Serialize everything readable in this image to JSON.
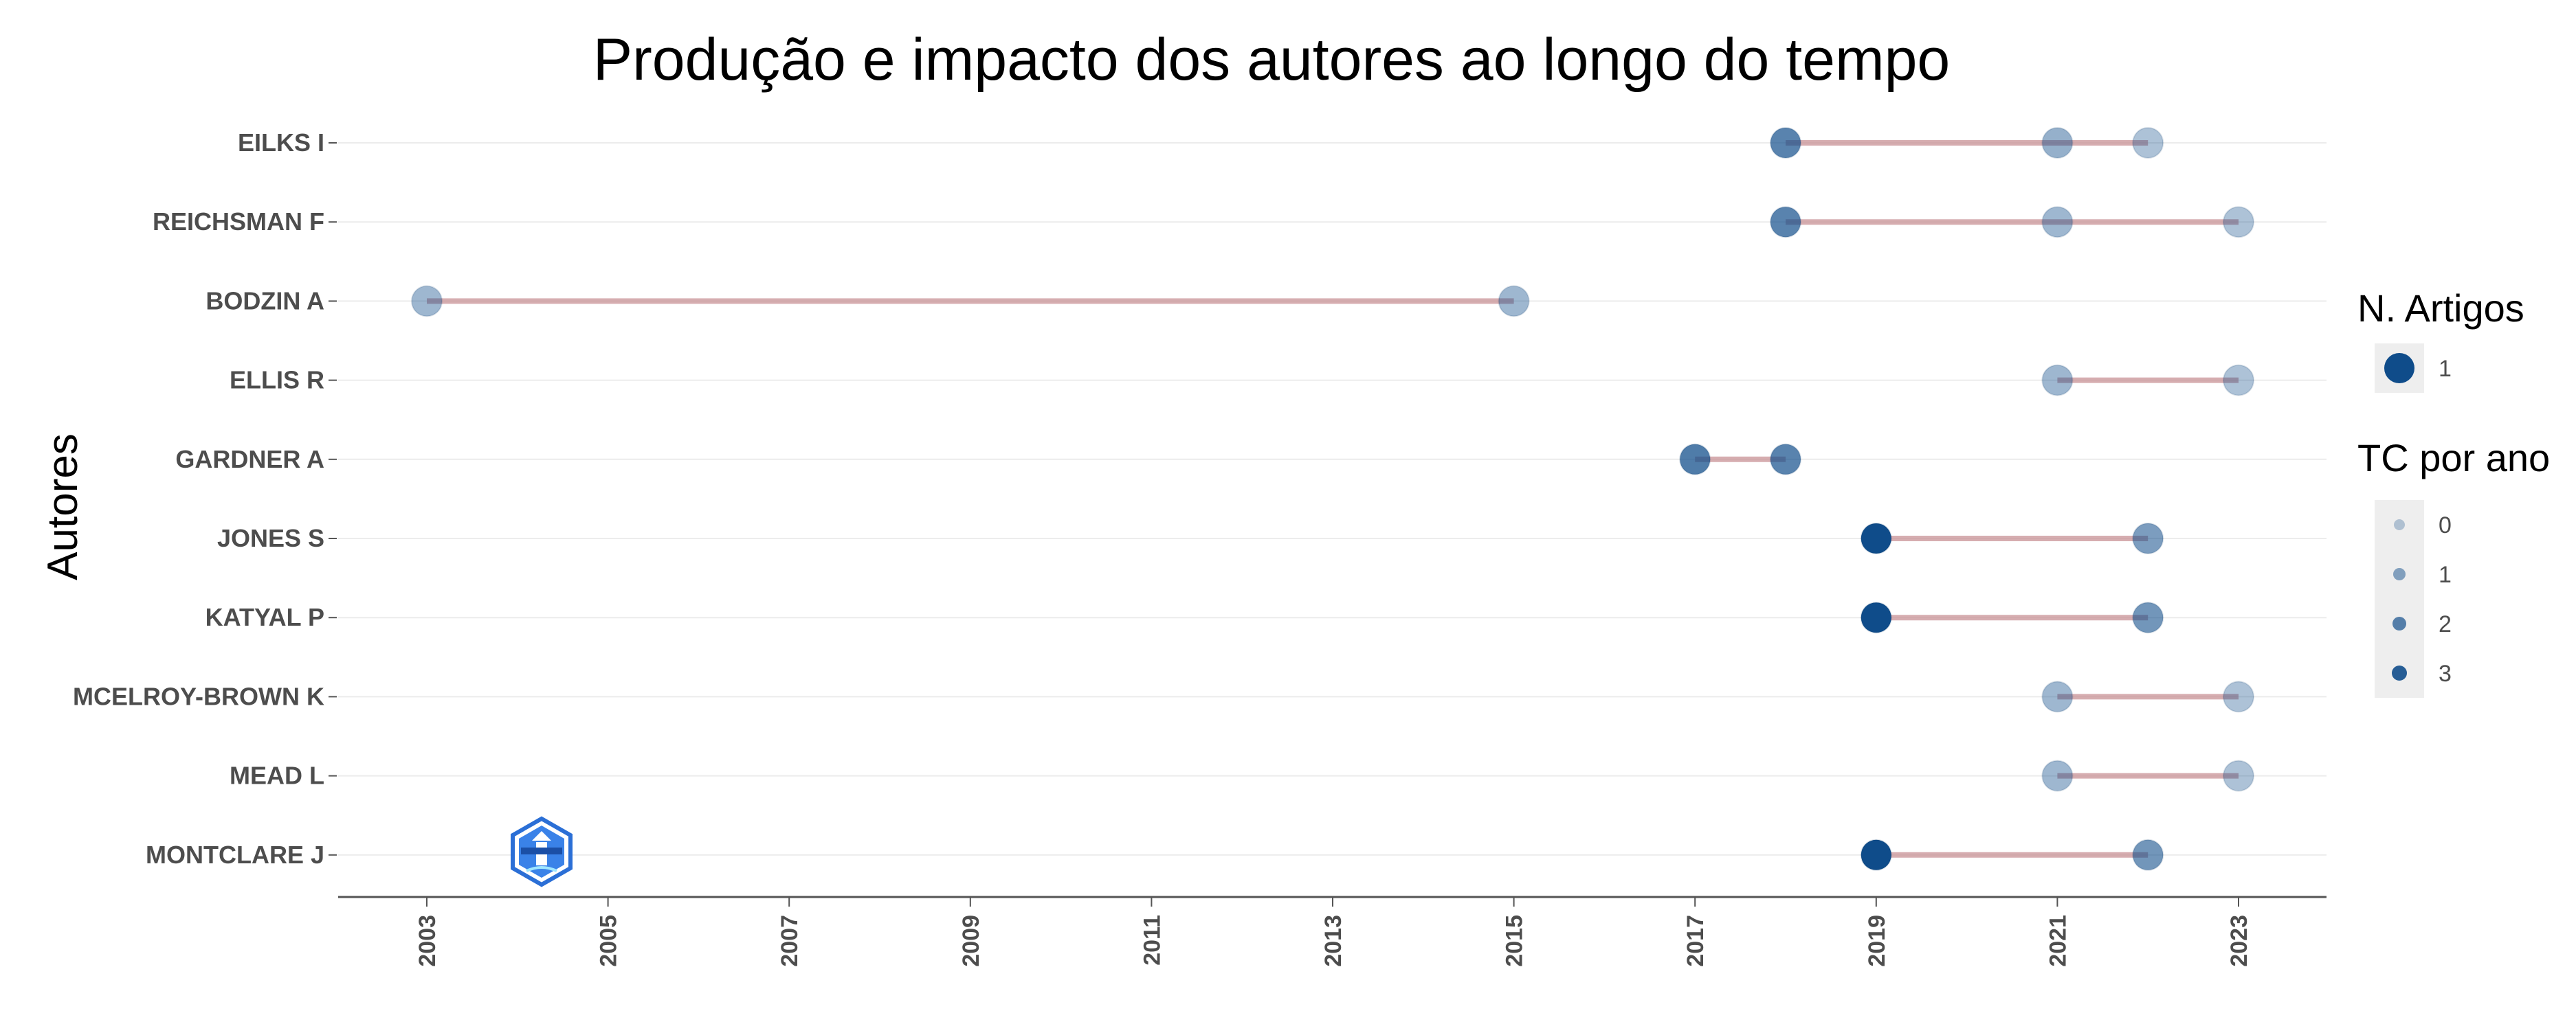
{
  "chart_data": {
    "type": "scatter",
    "title": "Produção e impacto dos autores ao longo do tempo",
    "ylabel": "Autores",
    "xlabel": "",
    "xlim": [
      2002,
      2024
    ],
    "x_ticks": [
      2003,
      2005,
      2007,
      2009,
      2011,
      2013,
      2015,
      2017,
      2019,
      2021,
      2023
    ],
    "x_tick_labels": [
      "2003",
      "2005",
      "2007",
      "2009",
      "2011",
      "2013",
      "2015",
      "2017",
      "2019",
      "2021",
      "2023"
    ],
    "categories": [
      "EILKS I",
      "REICHSMAN F",
      "BODZIN A",
      "ELLIS R",
      "GARDNER A",
      "JONES S",
      "KATYAL P",
      "MCELROY-BROWN K",
      "MEAD L",
      "MONTCLARE J"
    ],
    "segments": [
      {
        "author": "EILKS I",
        "from": 2018,
        "to": 2022
      },
      {
        "author": "REICHSMAN F",
        "from": 2018,
        "to": 2023
      },
      {
        "author": "BODZIN A",
        "from": 2003,
        "to": 2015
      },
      {
        "author": "ELLIS R",
        "from": 2021,
        "to": 2023
      },
      {
        "author": "GARDNER A",
        "from": 2017,
        "to": 2018
      },
      {
        "author": "JONES S",
        "from": 2019,
        "to": 2022
      },
      {
        "author": "KATYAL P",
        "from": 2019,
        "to": 2022
      },
      {
        "author": "MCELROY-BROWN K",
        "from": 2021,
        "to": 2023
      },
      {
        "author": "MEAD L",
        "from": 2021,
        "to": 2023
      },
      {
        "author": "MONTCLARE J",
        "from": 2019,
        "to": 2022
      }
    ],
    "points": [
      {
        "author": "EILKS I",
        "year": 2018,
        "articles": 1,
        "tc_per_year": 2.0
      },
      {
        "author": "EILKS I",
        "year": 2021,
        "articles": 1,
        "tc_per_year": 0.8
      },
      {
        "author": "EILKS I",
        "year": 2022,
        "articles": 1,
        "tc_per_year": 0.3
      },
      {
        "author": "REICHSMAN F",
        "year": 2018,
        "articles": 1,
        "tc_per_year": 2.0
      },
      {
        "author": "REICHSMAN F",
        "year": 2021,
        "articles": 1,
        "tc_per_year": 0.6
      },
      {
        "author": "REICHSMAN F",
        "year": 2023,
        "articles": 1,
        "tc_per_year": 0.3
      },
      {
        "author": "BODZIN A",
        "year": 2003,
        "articles": 1,
        "tc_per_year": 0.6
      },
      {
        "author": "BODZIN A",
        "year": 2015,
        "articles": 1,
        "tc_per_year": 0.6
      },
      {
        "author": "ELLIS R",
        "year": 2021,
        "articles": 1,
        "tc_per_year": 0.6
      },
      {
        "author": "ELLIS R",
        "year": 2023,
        "articles": 1,
        "tc_per_year": 0.3
      },
      {
        "author": "GARDNER A",
        "year": 2017,
        "articles": 1,
        "tc_per_year": 2.2
      },
      {
        "author": "GARDNER A",
        "year": 2018,
        "articles": 1,
        "tc_per_year": 2.0
      },
      {
        "author": "JONES S",
        "year": 2019,
        "articles": 1,
        "tc_per_year": 3.5
      },
      {
        "author": "JONES S",
        "year": 2022,
        "articles": 1,
        "tc_per_year": 1.3
      },
      {
        "author": "KATYAL P",
        "year": 2019,
        "articles": 1,
        "tc_per_year": 3.5
      },
      {
        "author": "KATYAL P",
        "year": 2022,
        "articles": 1,
        "tc_per_year": 1.5
      },
      {
        "author": "MCELROY-BROWN K",
        "year": 2021,
        "articles": 1,
        "tc_per_year": 0.6
      },
      {
        "author": "MCELROY-BROWN K",
        "year": 2023,
        "articles": 1,
        "tc_per_year": 0.3
      },
      {
        "author": "MEAD L",
        "year": 2021,
        "articles": 1,
        "tc_per_year": 0.6
      },
      {
        "author": "MEAD L",
        "year": 2023,
        "articles": 1,
        "tc_per_year": 0.3
      },
      {
        "author": "MONTCLARE J",
        "year": 2019,
        "articles": 1,
        "tc_per_year": 3.5
      },
      {
        "author": "MONTCLARE J",
        "year": 2022,
        "articles": 1,
        "tc_per_year": 1.5
      }
    ],
    "legend": {
      "placement": "right",
      "size_title": "N. Artigos",
      "size_entries": [
        {
          "label": "1",
          "value": 1
        }
      ],
      "color_title": "TC por ano",
      "color_entries": [
        {
          "label": "0",
          "value": 0
        },
        {
          "label": "1",
          "value": 1
        },
        {
          "label": "2",
          "value": 2
        },
        {
          "label": "3",
          "value": 3
        }
      ]
    },
    "grid": "horizontal-major",
    "colors": {
      "point": "#0f4c8a",
      "segment": "#c89295",
      "grid": "#ececec",
      "axis": "#555555",
      "legend_bg": "#eeeeee"
    },
    "watermark_text": "BIBLIOMETRIX"
  }
}
